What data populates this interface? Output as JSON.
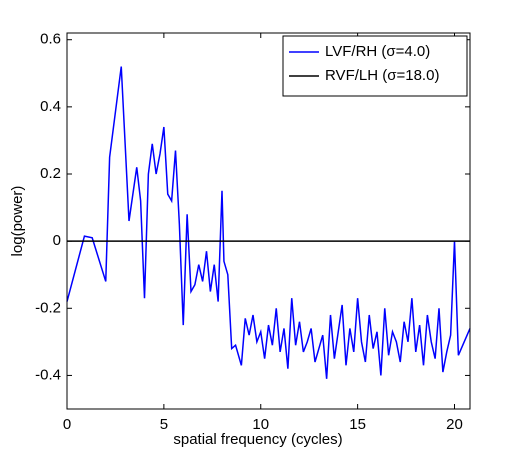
{
  "chart_data": {
    "type": "line",
    "xlabel": "spatial frequency (cycles)",
    "ylabel": "log(power)",
    "x": [
      0,
      0.9,
      1.3,
      2.0,
      2.2,
      2.8,
      3.2,
      3.6,
      3.8,
      4.0,
      4.2,
      4.4,
      4.6,
      4.8,
      5.0,
      5.2,
      5.4,
      5.6,
      5.8,
      6.0,
      6.2,
      6.4,
      6.6,
      6.8,
      7.0,
      7.2,
      7.4,
      7.6,
      7.8,
      8.0,
      8.1,
      8.3,
      8.5,
      8.7,
      9.0,
      9.2,
      9.4,
      9.6,
      9.8,
      10.0,
      10.2,
      10.4,
      10.6,
      10.8,
      11.0,
      11.2,
      11.4,
      11.6,
      11.8,
      12.0,
      12.2,
      12.4,
      12.6,
      12.8,
      13.0,
      13.2,
      13.4,
      13.6,
      13.8,
      14.0,
      14.2,
      14.4,
      14.6,
      14.8,
      15.0,
      15.2,
      15.4,
      15.6,
      15.8,
      16.0,
      16.2,
      16.4,
      16.6,
      16.8,
      17.0,
      17.2,
      17.4,
      17.6,
      17.8,
      18.0,
      18.2,
      18.4,
      18.6,
      18.8,
      19.0,
      19.2,
      19.4,
      19.6,
      19.8,
      20.0,
      20.2,
      20.8
    ],
    "series": [
      {
        "name": "LVF/RH (σ=4.0)",
        "color": "#0000ff",
        "values": [
          -0.18,
          0.015,
          0.01,
          -0.12,
          0.25,
          0.52,
          0.06,
          0.22,
          0.12,
          -0.17,
          0.2,
          0.29,
          0.2,
          0.26,
          0.34,
          0.14,
          0.12,
          0.27,
          0.05,
          -0.25,
          0.08,
          -0.15,
          -0.13,
          -0.07,
          -0.12,
          -0.03,
          -0.15,
          -0.07,
          -0.18,
          0.15,
          -0.06,
          -0.1,
          -0.32,
          -0.31,
          -0.37,
          -0.23,
          -0.28,
          -0.22,
          -0.3,
          -0.27,
          -0.35,
          -0.25,
          -0.31,
          -0.2,
          -0.33,
          -0.26,
          -0.38,
          -0.17,
          -0.31,
          -0.24,
          -0.33,
          -0.3,
          -0.26,
          -0.36,
          -0.32,
          -0.28,
          -0.41,
          -0.22,
          -0.35,
          -0.27,
          -0.19,
          -0.37,
          -0.26,
          -0.33,
          -0.17,
          -0.3,
          -0.36,
          -0.22,
          -0.32,
          -0.27,
          -0.4,
          -0.2,
          -0.34,
          -0.27,
          -0.3,
          -0.36,
          -0.24,
          -0.3,
          -0.17,
          -0.33,
          -0.25,
          -0.37,
          -0.22,
          -0.3,
          -0.35,
          -0.2,
          -0.39,
          -0.33,
          -0.28,
          0.0,
          -0.34,
          -0.26
        ]
      },
      {
        "name": "RVF/LH (σ=18.0)",
        "color": "#000000",
        "values": [
          0,
          0,
          0,
          0,
          0,
          0,
          0,
          0,
          0,
          0,
          0,
          0,
          0,
          0,
          0,
          0,
          0,
          0,
          0,
          0,
          0,
          0,
          0,
          0,
          0,
          0,
          0,
          0,
          0,
          0,
          0,
          0,
          0,
          0,
          0,
          0,
          0,
          0,
          0,
          0,
          0,
          0,
          0,
          0,
          0,
          0,
          0,
          0,
          0,
          0,
          0,
          0,
          0,
          0,
          0,
          0,
          0,
          0,
          0,
          0,
          0,
          0,
          0,
          0,
          0,
          0,
          0,
          0,
          0,
          0,
          0,
          0,
          0,
          0,
          0,
          0,
          0,
          0,
          0,
          0,
          0,
          0,
          0,
          0,
          0,
          0,
          0,
          0,
          0,
          0,
          0,
          0
        ]
      }
    ],
    "xlim": [
      0,
      20.8
    ],
    "xticks": [
      0,
      5,
      10,
      15,
      20
    ],
    "ylim": [
      -0.5,
      0.62
    ],
    "yticks": [
      -0.4,
      -0.2,
      0,
      0.2,
      0.4,
      0.6
    ],
    "grid": false,
    "legend": "upper right"
  }
}
